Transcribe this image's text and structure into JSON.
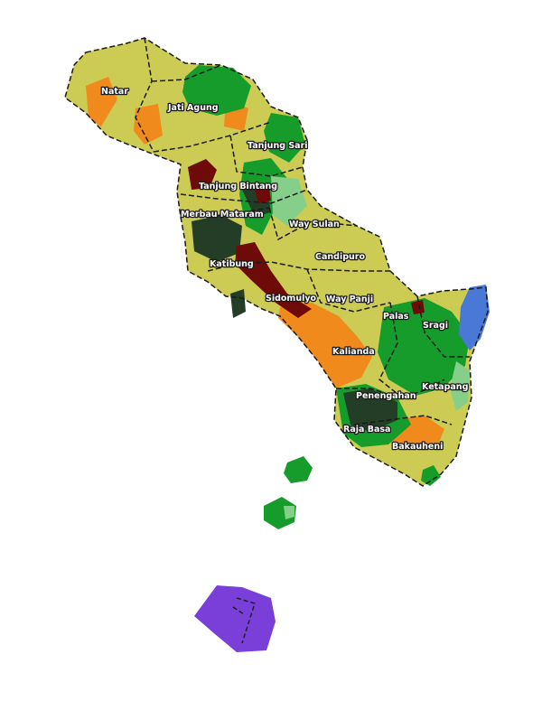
{
  "colors": {
    "cropland": "#cccc55",
    "settlement": "#f08a1c",
    "forest": "#169c2a",
    "dense_forest": "#233d26",
    "plantation": "#6e0a08",
    "light_vegetation": "#86cf8a",
    "water": "#4a78d6",
    "island": "#7a3fd8",
    "boundary": "#1a1a1a"
  },
  "districts": [
    {
      "id": "natar",
      "label": "Natar"
    },
    {
      "id": "jati-agung",
      "label": "Jati Agung"
    },
    {
      "id": "tanjung-sari",
      "label": "Tanjung Sari"
    },
    {
      "id": "tanjung-bintang",
      "label": "Tanjung Bintang"
    },
    {
      "id": "merbau-mataram",
      "label": "Merbau Mataram"
    },
    {
      "id": "way-sulan",
      "label": "Way Sulan"
    },
    {
      "id": "katibung",
      "label": "Katibung"
    },
    {
      "id": "candipuro",
      "label": "Candipuro"
    },
    {
      "id": "sidomulyo",
      "label": "Sidomulyo"
    },
    {
      "id": "way-panji",
      "label": "Way Panji"
    },
    {
      "id": "palas",
      "label": "Palas"
    },
    {
      "id": "sragi",
      "label": "Sragi"
    },
    {
      "id": "kalianda",
      "label": "Kalianda"
    },
    {
      "id": "ketapang",
      "label": "Ketapang"
    },
    {
      "id": "penengahan",
      "label": "Penengahan"
    },
    {
      "id": "raja-basa",
      "label": "Raja Basa"
    },
    {
      "id": "bakauheni",
      "label": "Bakauheni"
    }
  ]
}
